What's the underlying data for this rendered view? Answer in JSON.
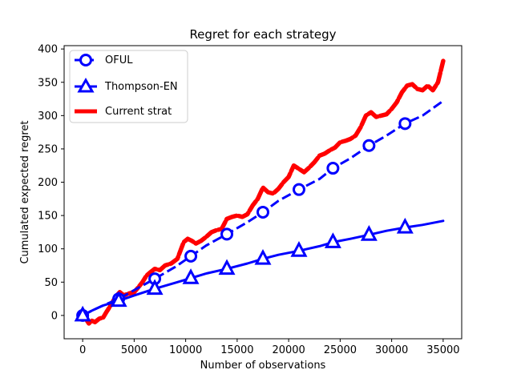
{
  "chart_data": {
    "type": "line",
    "title": "Regret for each strategy",
    "xlabel": "Number of observations",
    "ylabel": "Cumulated expected regret",
    "xlim": [
      -1800,
      36800
    ],
    "ylim": [
      -35,
      405
    ],
    "xticks": [
      0,
      5000,
      10000,
      15000,
      20000,
      25000,
      30000,
      35000
    ],
    "yticks": [
      0,
      50,
      100,
      150,
      200,
      250,
      300,
      350,
      400
    ],
    "grid": false,
    "legend_position": "top-left",
    "series": [
      {
        "name": "OFUL",
        "color": "#0000ff",
        "line_style": "dashed",
        "marker": "circle",
        "x": [
          0,
          1000,
          2000,
          3500,
          5000,
          7000,
          9000,
          10500,
          12000,
          14000,
          16000,
          17500,
          19000,
          21000,
          23000,
          24300,
          26000,
          27800,
          29500,
          31300,
          33000,
          35000
        ],
        "y": [
          0,
          8,
          15,
          25,
          38,
          55,
          73,
          89,
          105,
          122,
          140,
          155,
          172,
          189,
          205,
          221,
          236,
          255,
          270,
          288,
          300,
          322
        ],
        "marker_x": [
          0,
          3500,
          7000,
          10500,
          14000,
          17500,
          21000,
          24300,
          27800,
          31300
        ],
        "marker_y": [
          0,
          25,
          55,
          89,
          122,
          155,
          189,
          221,
          255,
          288
        ]
      },
      {
        "name": "Thompson-EN",
        "color": "#0000ff",
        "line_style": "solid",
        "marker": "triangle",
        "x": [
          0,
          1000,
          2000,
          3500,
          5000,
          7000,
          9000,
          10500,
          12000,
          14000,
          16000,
          17500,
          19000,
          21000,
          23000,
          24300,
          26000,
          27800,
          29500,
          31300,
          33000,
          35000
        ],
        "y": [
          0,
          8,
          15,
          22,
          30,
          40,
          49,
          56,
          63,
          70,
          78,
          85,
          91,
          97,
          104,
          110,
          115,
          121,
          127,
          132,
          136,
          142
        ],
        "marker_x": [
          0,
          3500,
          7000,
          10500,
          14000,
          17500,
          21000,
          24300,
          27800,
          31300
        ],
        "marker_y": [
          0,
          22,
          40,
          56,
          70,
          85,
          97,
          110,
          121,
          132
        ]
      },
      {
        "name": "Current strat",
        "color": "#ff0000",
        "line_style": "thick-dashed",
        "marker": "none",
        "x": [
          0,
          300,
          600,
          900,
          1200,
          1600,
          2000,
          2300,
          2600,
          2900,
          3200,
          3600,
          4000,
          4500,
          5000,
          5400,
          5800,
          6200,
          6600,
          7000,
          7500,
          8000,
          8600,
          9200,
          9800,
          10200,
          10600,
          11000,
          11500,
          12000,
          12500,
          13000,
          13500,
          14000,
          14500,
          15000,
          15500,
          16000,
          16500,
          17000,
          17500,
          18000,
          18500,
          19000,
          19500,
          20000,
          20500,
          21000,
          21500,
          22000,
          22500,
          23000,
          23500,
          24000,
          24500,
          25000,
          25500,
          26000,
          26500,
          27000,
          27500,
          28000,
          28500,
          29000,
          29500,
          30000,
          30500,
          31000,
          31500,
          32000,
          32500,
          33000,
          33500,
          34000,
          34500,
          35000
        ],
        "y": [
          0,
          -5,
          -12,
          -8,
          -10,
          -5,
          -3,
          5,
          12,
          20,
          28,
          35,
          30,
          33,
          35,
          42,
          50,
          60,
          65,
          70,
          68,
          75,
          78,
          85,
          110,
          115,
          112,
          108,
          112,
          118,
          125,
          128,
          130,
          145,
          148,
          150,
          148,
          152,
          165,
          175,
          192,
          185,
          183,
          190,
          200,
          208,
          225,
          220,
          215,
          222,
          230,
          240,
          243,
          248,
          252,
          260,
          262,
          265,
          270,
          283,
          300,
          305,
          298,
          300,
          302,
          310,
          320,
          335,
          345,
          347,
          340,
          338,
          345,
          338,
          350,
          382
        ]
      }
    ]
  }
}
